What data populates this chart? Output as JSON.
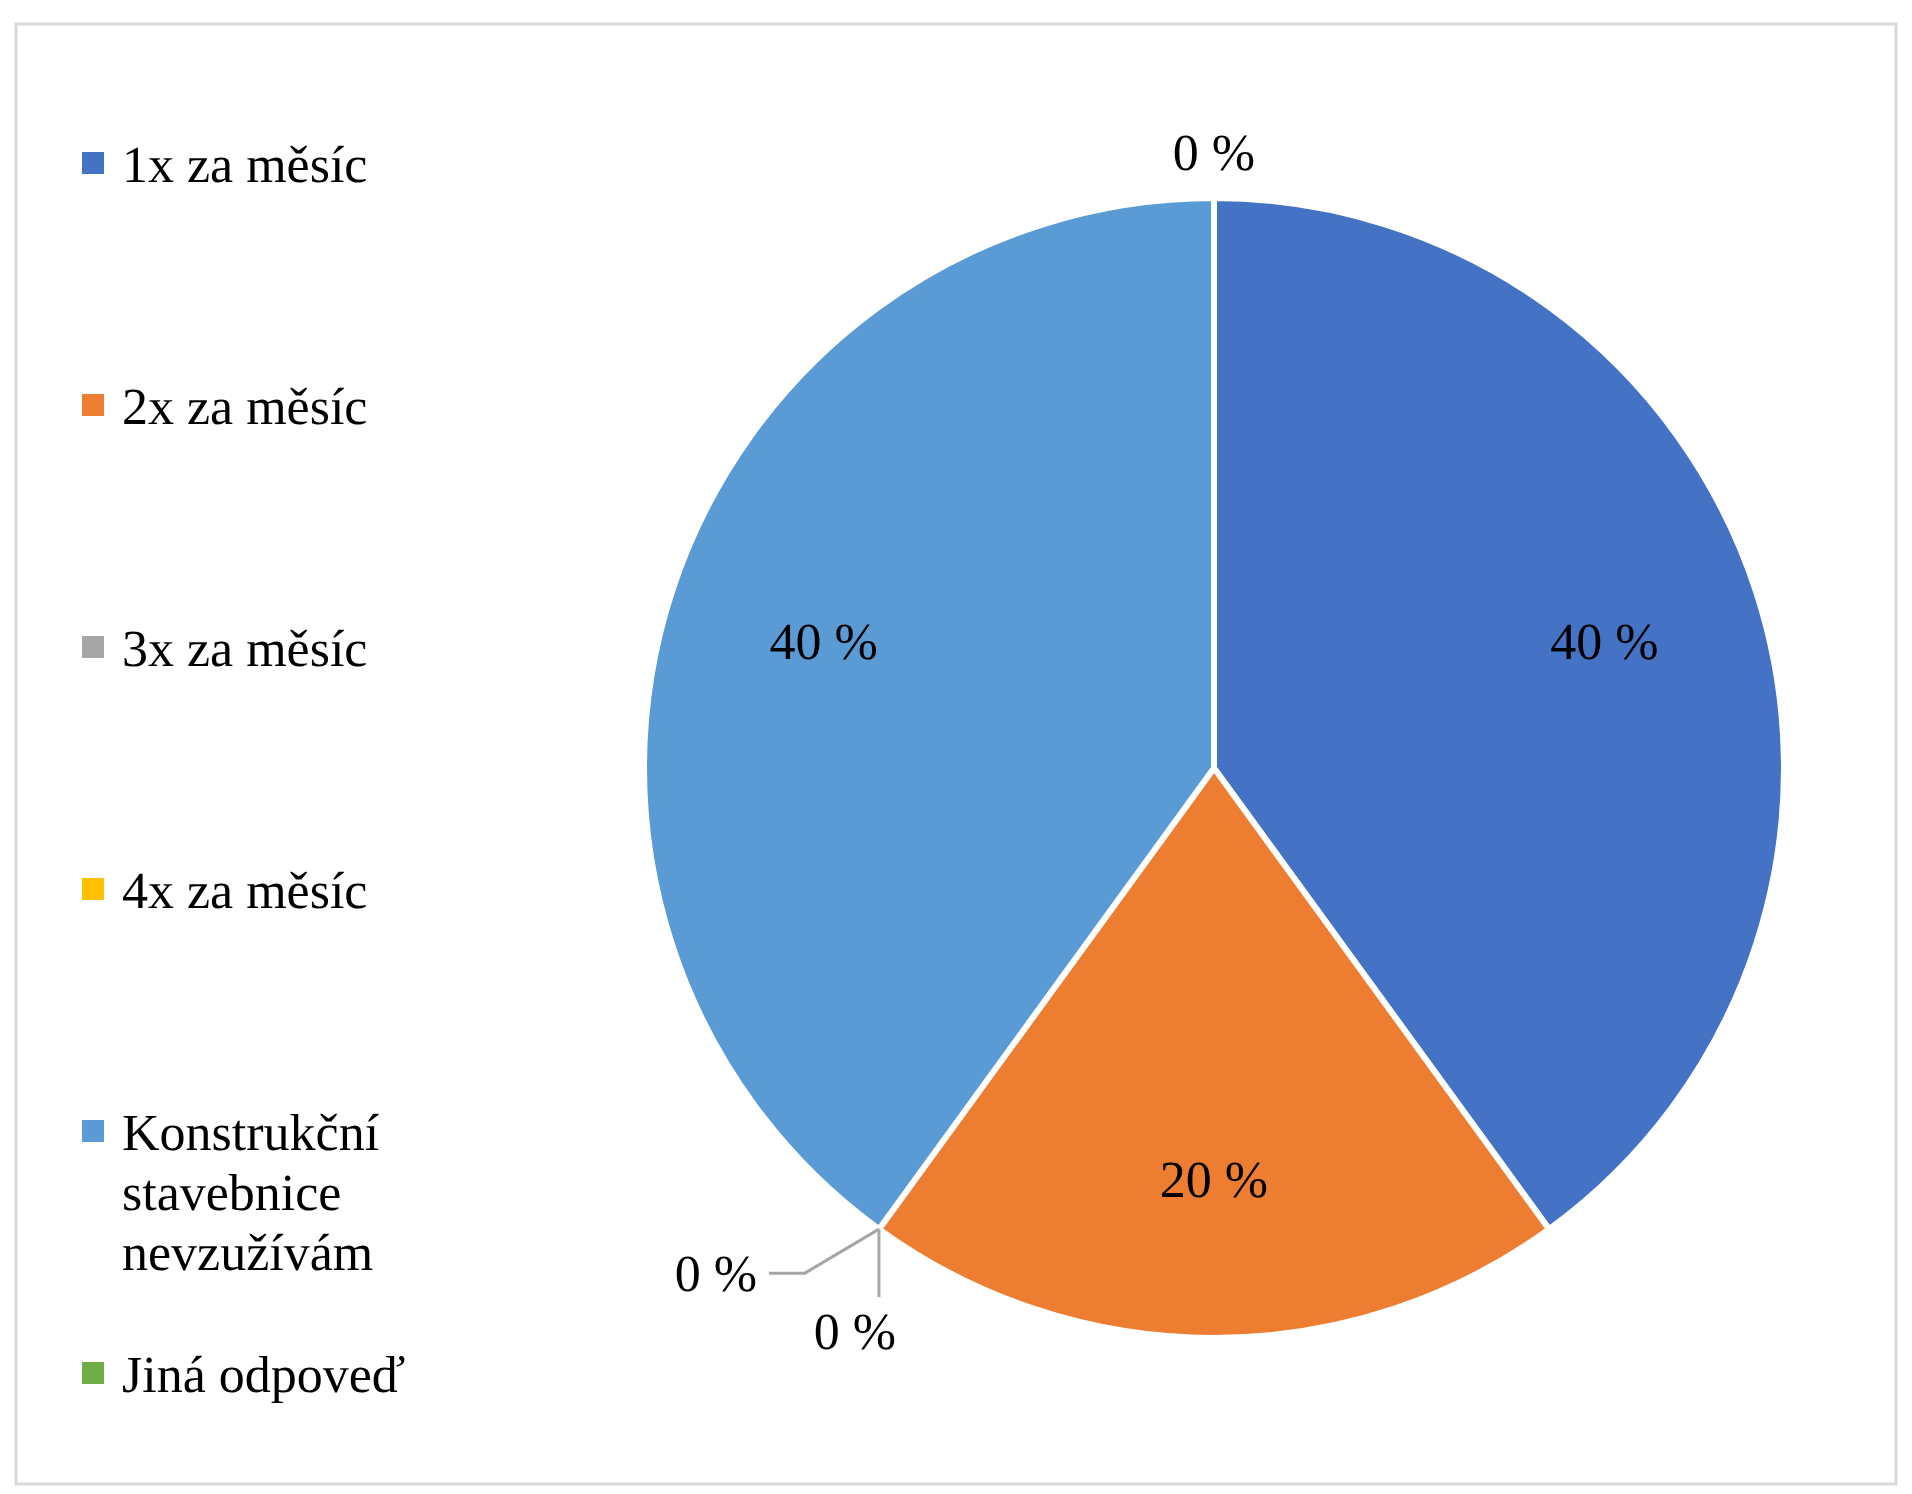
{
  "chart_data": {
    "type": "pie",
    "categories": [
      "1x za měsíc",
      "2x za měsíc",
      "3x za měsíc",
      "4x za měsíc",
      "Konstrukční stavebnice nevzužívám",
      "Jiná odpoveď"
    ],
    "values": [
      40,
      20,
      0,
      0,
      40,
      0
    ],
    "colors": [
      "#4472c4",
      "#ed7d31",
      "#a5a5a5",
      "#ffc000",
      "#5b9bd5",
      "#70ad47"
    ],
    "value_labels": [
      "40 %",
      "20 %",
      "0 %",
      "0 %",
      "40 %",
      "0 %"
    ],
    "legend": "left"
  }
}
